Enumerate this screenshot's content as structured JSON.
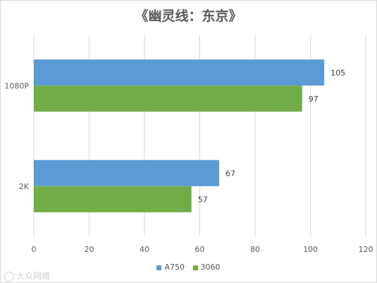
{
  "chart_data": {
    "type": "bar",
    "orientation": "horizontal",
    "title": "《幽灵线：东京》",
    "categories": [
      "1080P",
      "2K"
    ],
    "series": [
      {
        "name": "A750",
        "values": [
          105,
          67
        ],
        "color": "#5b9bd5"
      },
      {
        "name": "3060",
        "values": [
          97,
          57
        ],
        "color": "#70ad47"
      }
    ],
    "xlim": [
      0,
      120
    ],
    "xticks": [
      0,
      20,
      40,
      60,
      80,
      100,
      120
    ],
    "grid": true,
    "legend": "bottom"
  },
  "watermark": "大众网络"
}
